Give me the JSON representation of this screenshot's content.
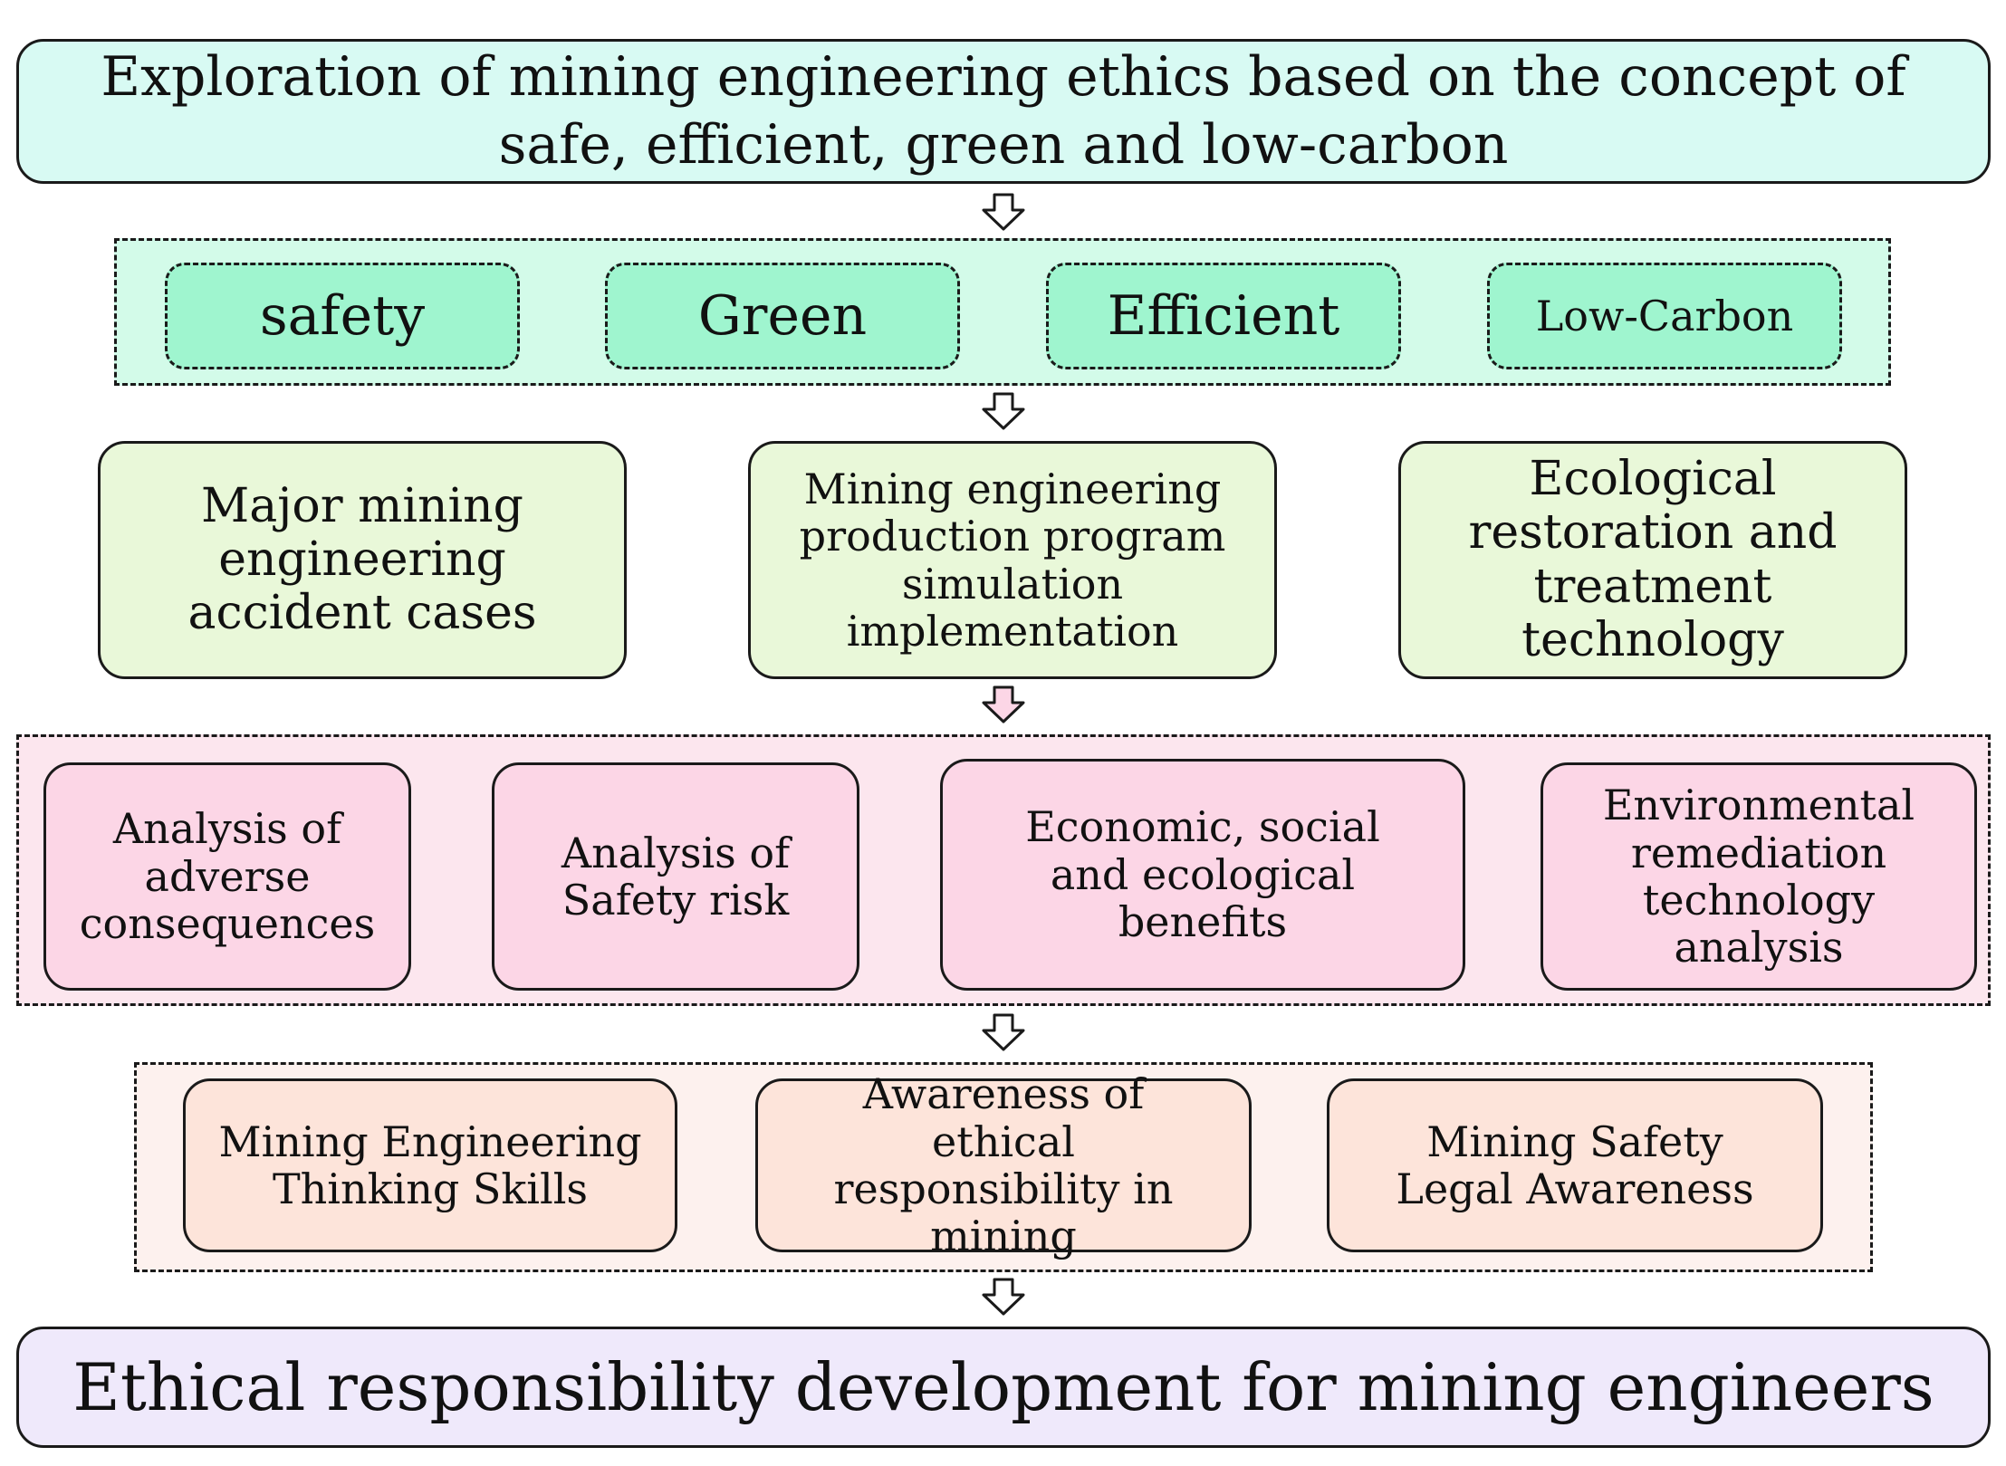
{
  "title": "Exploration of mining engineering ethics based on the concept of safe, efficient, green and low-carbon",
  "concepts": [
    "safety",
    "Green",
    "Efficient",
    "Low-Carbon"
  ],
  "topics": [
    "Major mining engineering accident cases",
    "Mining engineering production program simulation implementation",
    "Ecological restoration and treatment technology"
  ],
  "analyses": [
    "Analysis of adverse consequences",
    "Analysis of Safety risk",
    "Economic, social and ecological benefits",
    "Environmental remediation technology analysis"
  ],
  "abilities": [
    "Mining Engineering Thinking Skills",
    "Awareness of ethical responsibility in mining",
    "Mining Safety Legal Awareness"
  ],
  "goal": "Ethical responsibility development for mining engineers",
  "colors": {
    "title_fill": "#d8faf3",
    "concept_panel_fill": "#d3fbe9",
    "concept_fill": "#9ff5cf",
    "topic_fill": "#e9f8d9",
    "analysis_panel_fill": "#fce6ee",
    "analysis_fill": "#fcd6e6",
    "ability_panel_fill": "#fdf1ee",
    "ability_fill": "#fde4da",
    "goal_fill": "#efe9fb"
  }
}
